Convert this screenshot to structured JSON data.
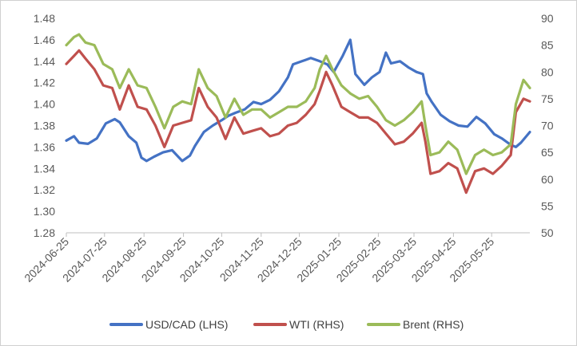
{
  "chart_data": {
    "type": "line",
    "title": "",
    "xlabel": "",
    "ylabel_left": "",
    "ylabel_right": "",
    "grid": false,
    "legend_position": "bottom",
    "x_range": [
      "2024-06-25",
      "2025-06-24"
    ],
    "x_ticks": [
      "2024-06-25",
      "2024-07-25",
      "2024-08-25",
      "2024-09-25",
      "2024-10-25",
      "2024-11-25",
      "2024-12-25",
      "2025-01-25",
      "2025-02-25",
      "2025-03-25",
      "2025-04-25",
      "2025-05-25"
    ],
    "y_left": {
      "min": 1.28,
      "max": 1.48,
      "ticks": [
        "1.28",
        "1.30",
        "1.32",
        "1.34",
        "1.36",
        "1.38",
        "1.40",
        "1.42",
        "1.44",
        "1.46",
        "1.48"
      ]
    },
    "y_right": {
      "min": 50,
      "max": 90,
      "ticks": [
        "50",
        "55",
        "60",
        "65",
        "70",
        "75",
        "80",
        "85",
        "90"
      ]
    },
    "series": [
      {
        "name": "USD/CAD (LHS)",
        "axis": "left",
        "color": "#4472C4",
        "points": [
          [
            "2024-06-25",
            1.366
          ],
          [
            "2024-07-01",
            1.37
          ],
          [
            "2024-07-05",
            1.364
          ],
          [
            "2024-07-12",
            1.363
          ],
          [
            "2024-07-19",
            1.368
          ],
          [
            "2024-07-26",
            1.382
          ],
          [
            "2024-08-02",
            1.386
          ],
          [
            "2024-08-06",
            1.383
          ],
          [
            "2024-08-13",
            1.37
          ],
          [
            "2024-08-19",
            1.364
          ],
          [
            "2024-08-23",
            1.35
          ],
          [
            "2024-08-27",
            1.347
          ],
          [
            "2024-09-02",
            1.351
          ],
          [
            "2024-09-09",
            1.355
          ],
          [
            "2024-09-16",
            1.357
          ],
          [
            "2024-09-24",
            1.347
          ],
          [
            "2024-09-30",
            1.352
          ],
          [
            "2024-10-04",
            1.361
          ],
          [
            "2024-10-11",
            1.374
          ],
          [
            "2024-10-18",
            1.38
          ],
          [
            "2024-10-25",
            1.385
          ],
          [
            "2024-10-30",
            1.389
          ],
          [
            "2024-11-05",
            1.392
          ],
          [
            "2024-11-12",
            1.395
          ],
          [
            "2024-11-19",
            1.402
          ],
          [
            "2024-11-25",
            1.4
          ],
          [
            "2024-12-02",
            1.404
          ],
          [
            "2024-12-09",
            1.412
          ],
          [
            "2024-12-16",
            1.425
          ],
          [
            "2024-12-20",
            1.437
          ],
          [
            "2024-12-27",
            1.44
          ],
          [
            "2025-01-03",
            1.443
          ],
          [
            "2025-01-10",
            1.44
          ],
          [
            "2025-01-16",
            1.437
          ],
          [
            "2025-01-21",
            1.43
          ],
          [
            "2025-01-28",
            1.445
          ],
          [
            "2025-02-03",
            1.46
          ],
          [
            "2025-02-07",
            1.428
          ],
          [
            "2025-02-14",
            1.418
          ],
          [
            "2025-02-20",
            1.425
          ],
          [
            "2025-02-26",
            1.43
          ],
          [
            "2025-03-03",
            1.448
          ],
          [
            "2025-03-07",
            1.438
          ],
          [
            "2025-03-14",
            1.44
          ],
          [
            "2025-03-21",
            1.434
          ],
          [
            "2025-03-27",
            1.43
          ],
          [
            "2025-04-01",
            1.428
          ],
          [
            "2025-04-04",
            1.41
          ],
          [
            "2025-04-08",
            1.402
          ],
          [
            "2025-04-15",
            1.39
          ],
          [
            "2025-04-22",
            1.384
          ],
          [
            "2025-04-29",
            1.38
          ],
          [
            "2025-05-06",
            1.379
          ],
          [
            "2025-05-13",
            1.388
          ],
          [
            "2025-05-20",
            1.382
          ],
          [
            "2025-05-27",
            1.372
          ],
          [
            "2025-06-02",
            1.368
          ],
          [
            "2025-06-09",
            1.362
          ],
          [
            "2025-06-13",
            1.36
          ],
          [
            "2025-06-17",
            1.364
          ],
          [
            "2025-06-24",
            1.374
          ]
        ]
      },
      {
        "name": "WTI (RHS)",
        "axis": "right",
        "color": "#C0504D",
        "points": [
          [
            "2024-06-25",
            81.5
          ],
          [
            "2024-07-01",
            83.0
          ],
          [
            "2024-07-05",
            84.0
          ],
          [
            "2024-07-10",
            82.5
          ],
          [
            "2024-07-17",
            80.5
          ],
          [
            "2024-07-24",
            77.5
          ],
          [
            "2024-07-31",
            77.0
          ],
          [
            "2024-08-06",
            73.0
          ],
          [
            "2024-08-13",
            77.5
          ],
          [
            "2024-08-20",
            73.5
          ],
          [
            "2024-08-27",
            73.0
          ],
          [
            "2024-09-03",
            70.0
          ],
          [
            "2024-09-10",
            66.0
          ],
          [
            "2024-09-17",
            70.0
          ],
          [
            "2024-09-24",
            70.5
          ],
          [
            "2024-10-01",
            71.0
          ],
          [
            "2024-10-07",
            77.0
          ],
          [
            "2024-10-14",
            73.5
          ],
          [
            "2024-10-21",
            71.5
          ],
          [
            "2024-10-28",
            67.5
          ],
          [
            "2024-11-04",
            71.5
          ],
          [
            "2024-11-11",
            68.5
          ],
          [
            "2024-11-18",
            69.0
          ],
          [
            "2024-11-25",
            69.5
          ],
          [
            "2024-12-02",
            68.0
          ],
          [
            "2024-12-09",
            68.5
          ],
          [
            "2024-12-16",
            70.0
          ],
          [
            "2024-12-23",
            70.5
          ],
          [
            "2024-12-30",
            72.0
          ],
          [
            "2025-01-06",
            74.0
          ],
          [
            "2025-01-10",
            76.5
          ],
          [
            "2025-01-15",
            80.0
          ],
          [
            "2025-01-20",
            77.5
          ],
          [
            "2025-01-27",
            73.5
          ],
          [
            "2025-02-03",
            72.5
          ],
          [
            "2025-02-10",
            71.5
          ],
          [
            "2025-02-17",
            71.5
          ],
          [
            "2025-02-24",
            70.5
          ],
          [
            "2025-03-03",
            68.5
          ],
          [
            "2025-03-10",
            66.5
          ],
          [
            "2025-03-17",
            67.0
          ],
          [
            "2025-03-24",
            68.5
          ],
          [
            "2025-03-31",
            70.5
          ],
          [
            "2025-04-03",
            67.0
          ],
          [
            "2025-04-07",
            61.0
          ],
          [
            "2025-04-14",
            61.5
          ],
          [
            "2025-04-21",
            63.0
          ],
          [
            "2025-04-28",
            62.0
          ],
          [
            "2025-05-05",
            57.5
          ],
          [
            "2025-05-12",
            61.5
          ],
          [
            "2025-05-19",
            62.0
          ],
          [
            "2025-05-26",
            61.0
          ],
          [
            "2025-06-02",
            62.5
          ],
          [
            "2025-06-09",
            64.5
          ],
          [
            "2025-06-13",
            72.5
          ],
          [
            "2025-06-19",
            75.0
          ],
          [
            "2025-06-24",
            74.5
          ]
        ]
      },
      {
        "name": "Brent (RHS)",
        "axis": "right",
        "color": "#9BBB59",
        "points": [
          [
            "2024-06-25",
            85.0
          ],
          [
            "2024-07-01",
            86.5
          ],
          [
            "2024-07-05",
            87.0
          ],
          [
            "2024-07-10",
            85.5
          ],
          [
            "2024-07-17",
            85.0
          ],
          [
            "2024-07-24",
            81.5
          ],
          [
            "2024-07-31",
            80.5
          ],
          [
            "2024-08-06",
            77.0
          ],
          [
            "2024-08-13",
            80.5
          ],
          [
            "2024-08-20",
            77.5
          ],
          [
            "2024-08-27",
            77.0
          ],
          [
            "2024-09-03",
            73.5
          ],
          [
            "2024-09-10",
            69.5
          ],
          [
            "2024-09-17",
            73.5
          ],
          [
            "2024-09-24",
            74.5
          ],
          [
            "2024-10-01",
            74.0
          ],
          [
            "2024-10-07",
            80.5
          ],
          [
            "2024-10-14",
            77.0
          ],
          [
            "2024-10-21",
            75.5
          ],
          [
            "2024-10-28",
            71.5
          ],
          [
            "2024-11-04",
            75.0
          ],
          [
            "2024-11-11",
            72.0
          ],
          [
            "2024-11-18",
            73.0
          ],
          [
            "2024-11-25",
            73.0
          ],
          [
            "2024-12-02",
            71.5
          ],
          [
            "2024-12-09",
            72.5
          ],
          [
            "2024-12-16",
            73.5
          ],
          [
            "2024-12-23",
            73.5
          ],
          [
            "2024-12-30",
            74.5
          ],
          [
            "2025-01-06",
            77.0
          ],
          [
            "2025-01-10",
            80.5
          ],
          [
            "2025-01-15",
            83.0
          ],
          [
            "2025-01-20",
            80.5
          ],
          [
            "2025-01-27",
            77.5
          ],
          [
            "2025-02-03",
            76.0
          ],
          [
            "2025-02-10",
            75.0
          ],
          [
            "2025-02-17",
            75.5
          ],
          [
            "2025-02-24",
            73.5
          ],
          [
            "2025-03-03",
            71.0
          ],
          [
            "2025-03-10",
            70.0
          ],
          [
            "2025-03-17",
            71.0
          ],
          [
            "2025-03-24",
            72.5
          ],
          [
            "2025-03-31",
            74.5
          ],
          [
            "2025-04-03",
            70.0
          ],
          [
            "2025-04-07",
            64.5
          ],
          [
            "2025-04-14",
            65.0
          ],
          [
            "2025-04-21",
            67.0
          ],
          [
            "2025-04-28",
            65.5
          ],
          [
            "2025-05-05",
            61.0
          ],
          [
            "2025-05-12",
            64.5
          ],
          [
            "2025-05-19",
            65.5
          ],
          [
            "2025-05-26",
            64.5
          ],
          [
            "2025-06-02",
            65.0
          ],
          [
            "2025-06-09",
            66.5
          ],
          [
            "2025-06-13",
            74.0
          ],
          [
            "2025-06-19",
            78.5
          ],
          [
            "2025-06-24",
            77.0
          ]
        ]
      }
    ]
  }
}
